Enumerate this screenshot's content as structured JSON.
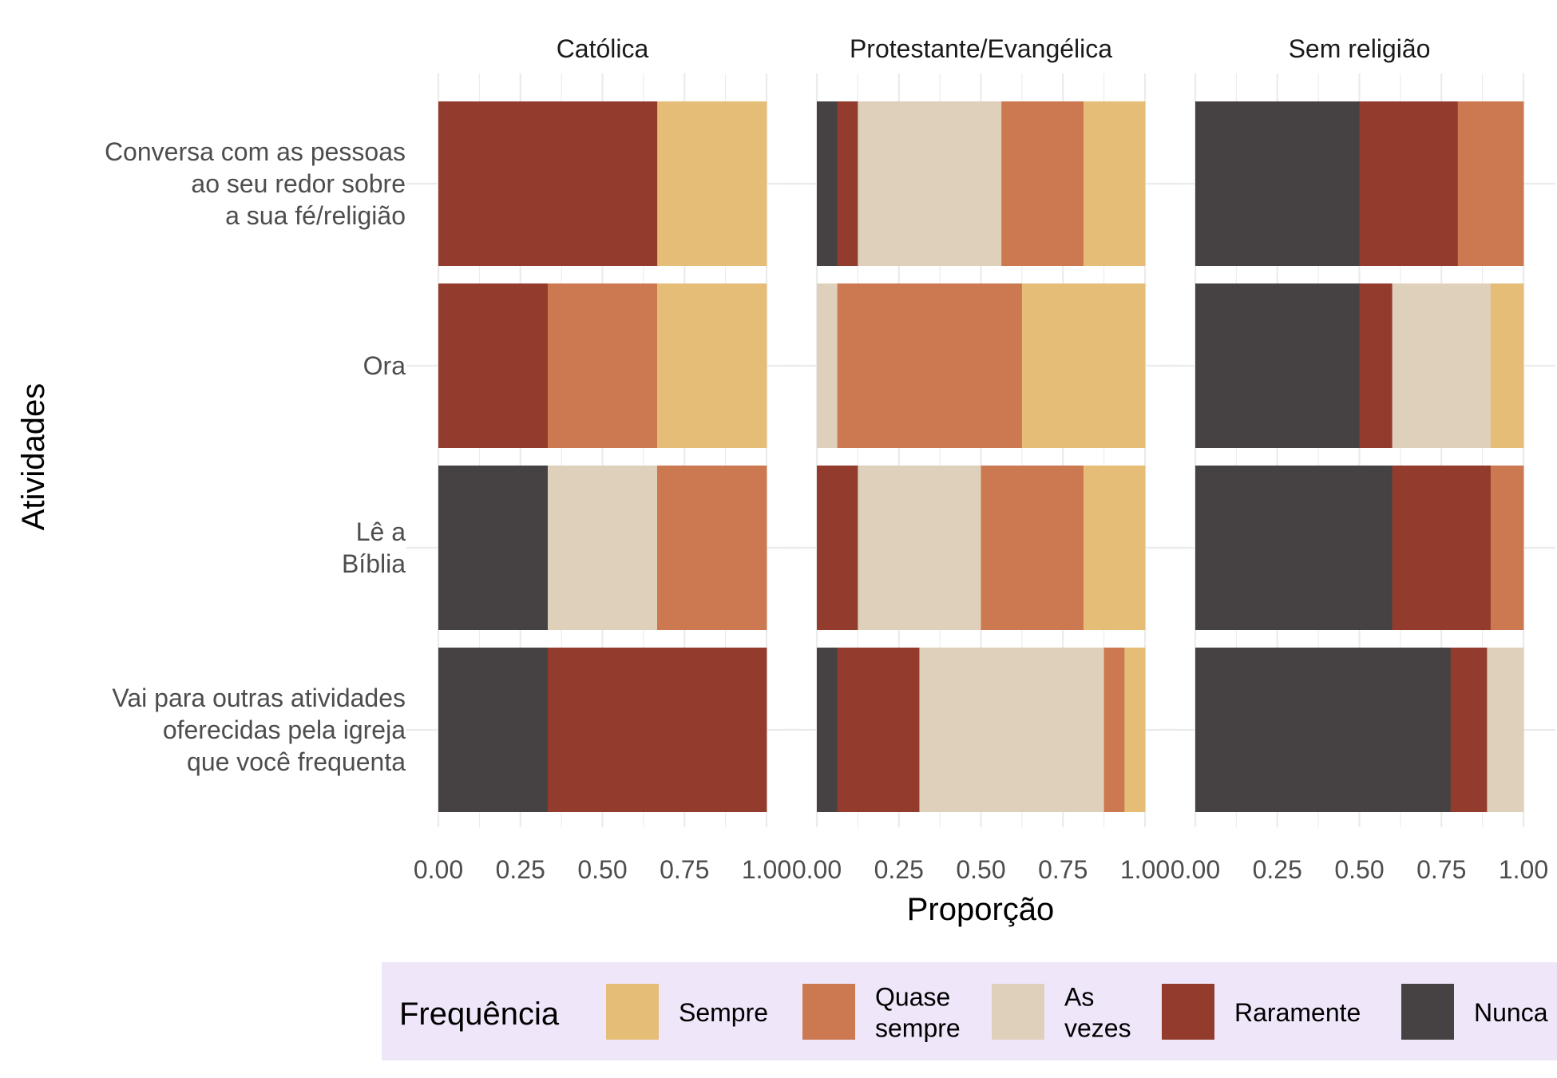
{
  "chart_data": {
    "type": "bar",
    "orientation": "horizontal",
    "stacked": "proportion",
    "facets": [
      "Católica",
      "Protestante/Evangélica",
      "Sem religião"
    ],
    "categories": [
      "Conversa com as pessoas\nao seu redor sobre\na sua fé/religião",
      "Ora",
      "Lê a\nBíblia",
      "Vai para outras atividades\noferecidas pela igreja\nque você frequenta"
    ],
    "xlabel": "Proporção",
    "ylabel": "Atividades",
    "xlim": [
      0,
      1
    ],
    "x_ticks": [
      "0.00",
      "0.25",
      "0.50",
      "0.75",
      "1.00"
    ],
    "grid": true,
    "legend": {
      "title": "Frequência",
      "position": "bottom",
      "background": "#f0e6fa",
      "entries": [
        {
          "key": "sempre",
          "label": "Sempre",
          "color": "#e5bd77"
        },
        {
          "key": "quase",
          "label": "Quase\nsempre",
          "color": "#cc7850"
        },
        {
          "key": "asvezes",
          "label": "As\nvezes",
          "color": "#dfd0bb"
        },
        {
          "key": "raramente",
          "label": "Raramente",
          "color": "#933c2e"
        },
        {
          "key": "nunca",
          "label": "Nunca",
          "color": "#464243"
        }
      ]
    },
    "stack_order": [
      "nunca",
      "raramente",
      "asvezes",
      "quase",
      "sempre"
    ],
    "values": {
      "Católica": [
        {
          "nunca": 0,
          "raramente": 0.667,
          "asvezes": 0,
          "quase": 0,
          "sempre": 0.333
        },
        {
          "nunca": 0,
          "raramente": 0.333,
          "asvezes": 0,
          "quase": 0.333,
          "sempre": 0.333
        },
        {
          "nunca": 0.333,
          "raramente": 0,
          "asvezes": 0.333,
          "quase": 0.333,
          "sempre": 0
        },
        {
          "nunca": 0.333,
          "raramente": 0.667,
          "asvezes": 0,
          "quase": 0,
          "sempre": 0
        }
      ],
      "Protestante/Evangélica": [
        {
          "nunca": 0.0625,
          "raramente": 0.0625,
          "asvezes": 0.4375,
          "quase": 0.25,
          "sempre": 0.1875
        },
        {
          "nunca": 0,
          "raramente": 0,
          "asvezes": 0.0625,
          "quase": 0.5625,
          "sempre": 0.375
        },
        {
          "nunca": 0,
          "raramente": 0.125,
          "asvezes": 0.375,
          "quase": 0.3125,
          "sempre": 0.1875
        },
        {
          "nunca": 0.0625,
          "raramente": 0.25,
          "asvezes": 0.5625,
          "quase": 0.0625,
          "sempre": 0.0625
        }
      ],
      "Sem religião": [
        {
          "nunca": 0.5,
          "raramente": 0.3,
          "asvezes": 0,
          "quase": 0.2,
          "sempre": 0
        },
        {
          "nunca": 0.5,
          "raramente": 0.1,
          "asvezes": 0.3,
          "quase": 0,
          "sempre": 0.1
        },
        {
          "nunca": 0.6,
          "raramente": 0.3,
          "asvezes": 0,
          "quase": 0.1,
          "sempre": 0
        },
        {
          "nunca": 0.778,
          "raramente": 0.111,
          "asvezes": 0.111,
          "quase": 0,
          "sempre": 0
        }
      ]
    }
  }
}
